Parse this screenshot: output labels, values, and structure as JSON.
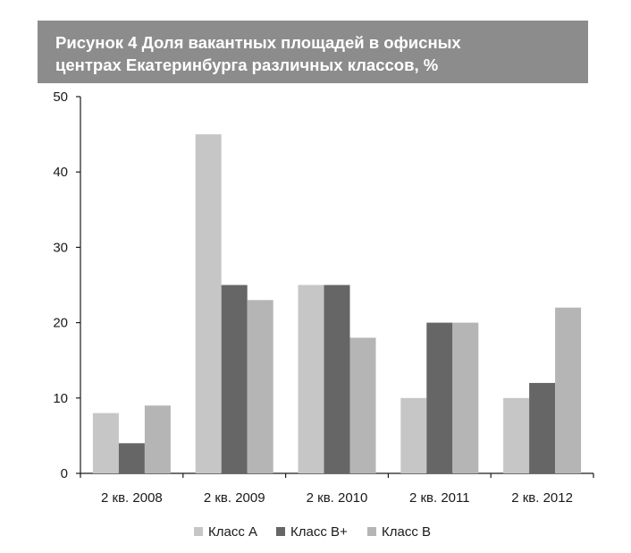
{
  "title_lines": [
    "Рисунок 4 Доля вакантных площадей в офисных",
    "центрах Екатеринбурга различных классов, %"
  ],
  "chart_data": {
    "type": "bar",
    "title": "Рисунок 4 Доля вакантных площадей в офисных центрах Екатеринбурга различных классов, %",
    "categories": [
      "2 кв. 2008",
      "2 кв. 2009",
      "2 кв. 2010",
      "2 кв. 2011",
      "2 кв. 2012"
    ],
    "series": [
      {
        "name": "Класс А",
        "color": "#c6c6c6",
        "values": [
          8,
          45,
          25,
          10,
          10
        ]
      },
      {
        "name": "Класс В+",
        "color": "#666666",
        "values": [
          4,
          25,
          25,
          20,
          12
        ]
      },
      {
        "name": "Класс В",
        "color": "#b5b5b5",
        "values": [
          9,
          23,
          18,
          20,
          22
        ]
      }
    ],
    "ylim": [
      0,
      50
    ],
    "yticks": [
      "0",
      "10",
      "20",
      "30",
      "40",
      "50"
    ],
    "xlabel": "",
    "ylabel": "",
    "grid": false,
    "legend_position": "bottom"
  }
}
